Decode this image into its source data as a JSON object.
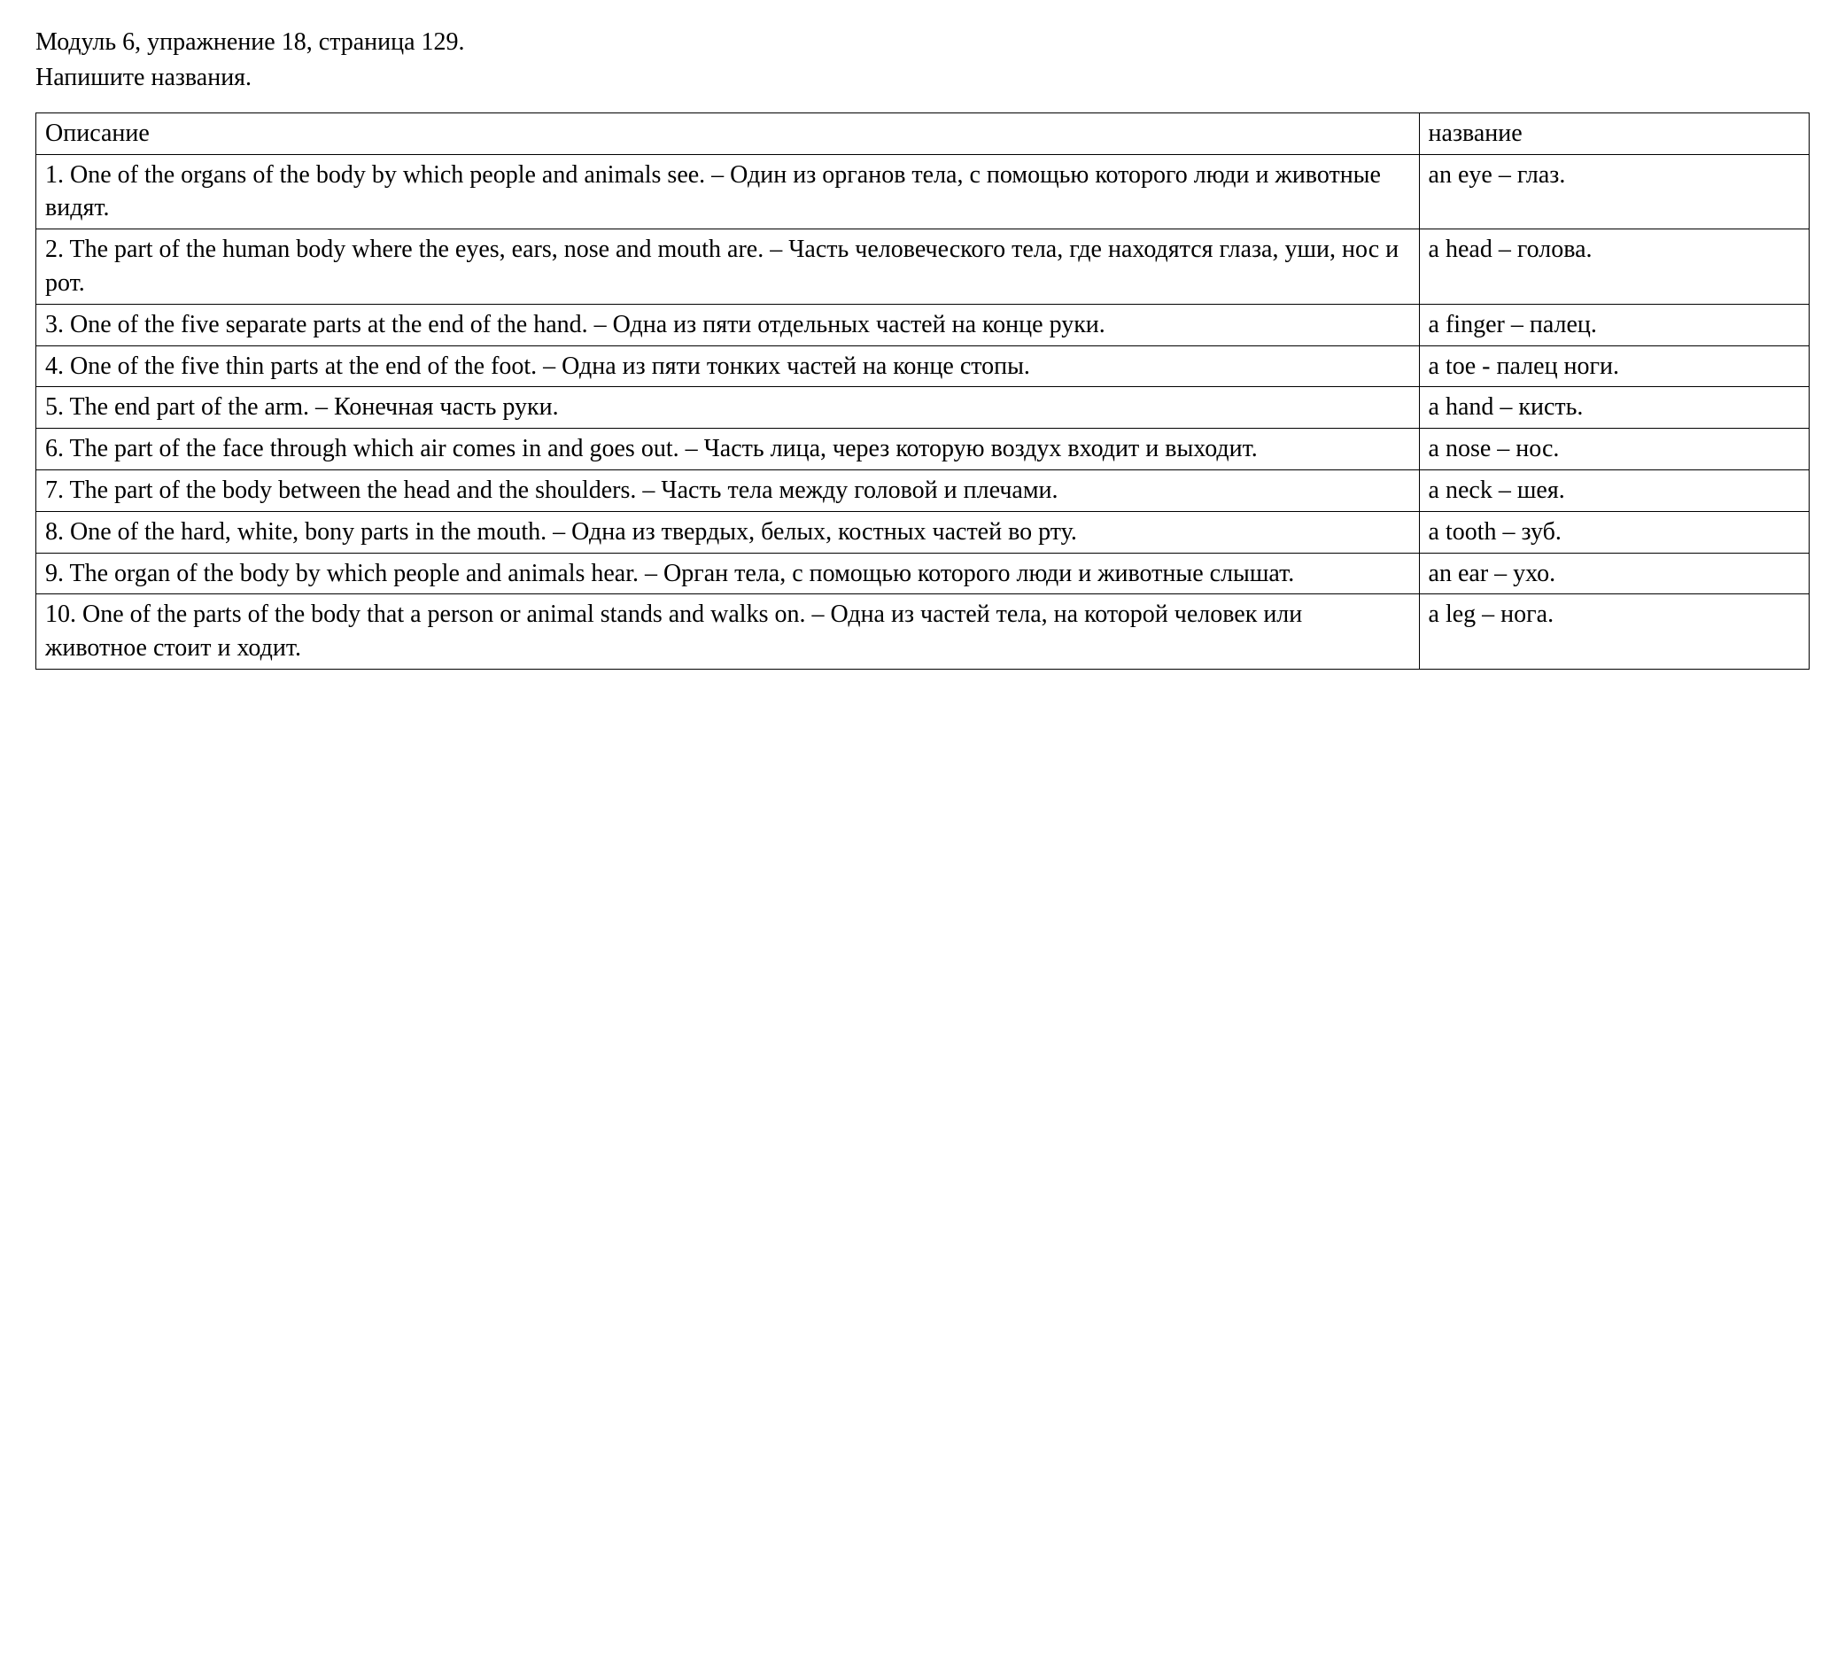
{
  "header": {
    "line1": "Модуль 6, упражнение 18, страница 129.",
    "line2": "Напишите названия."
  },
  "table": {
    "columns": [
      "Описание",
      "название"
    ],
    "column_widths": [
      "78%",
      "22%"
    ],
    "border_color": "#000000",
    "text_color": "#000000",
    "background_color": "#ffffff",
    "font_family": "Times New Roman",
    "font_size_pt": 21,
    "rows": [
      {
        "description": "1. One of the organs of the body by which people and animals see. – Один из органов тела, с помощью которого люди и животные видят.",
        "name": "an eye – глаз."
      },
      {
        "description": "2. The part of the human body where the eyes, ears, nose and mouth are. – Часть человеческого тела, где находятся глаза, уши, нос и рот.",
        "name": "a head – голова."
      },
      {
        "description": "3. One of the five separate parts at the end of the hand.  – Одна из пяти отдельных частей на конце руки.",
        "name": "a finger – палец."
      },
      {
        "description": "4. One of the five thin parts at the end of the foot. – Одна из пяти тонких частей на конце стопы.",
        "name": "a toe - палец ноги."
      },
      {
        "description": "5. The end part of the arm. – Конечная часть руки.",
        "name": "a hand – кисть."
      },
      {
        "description": "6. The part of the face through which air comes in and goes out. – Часть лица, через которую воздух входит и выходит.",
        "name": "a nose – нос."
      },
      {
        "description": "7. The part of the body between the head and the shoulders.  – Часть тела между головой и плечами.",
        "name": "a neck – шея."
      },
      {
        "description": "8. One of the hard, white, bony parts in the mouth.  – Одна из твердых, белых, костных частей во рту.",
        "name": "a tooth – зуб."
      },
      {
        "description": "9. The organ of the body by which people and animals hear. – Орган тела, с помощью которого люди и животные слышат.",
        "name": "an ear – ухо."
      },
      {
        "description": "10. One of the parts of the body that a person or animal stands and walks on.  – Одна из частей тела, на которой человек или животное стоит и ходит.",
        "name": "a leg – нога."
      }
    ]
  }
}
